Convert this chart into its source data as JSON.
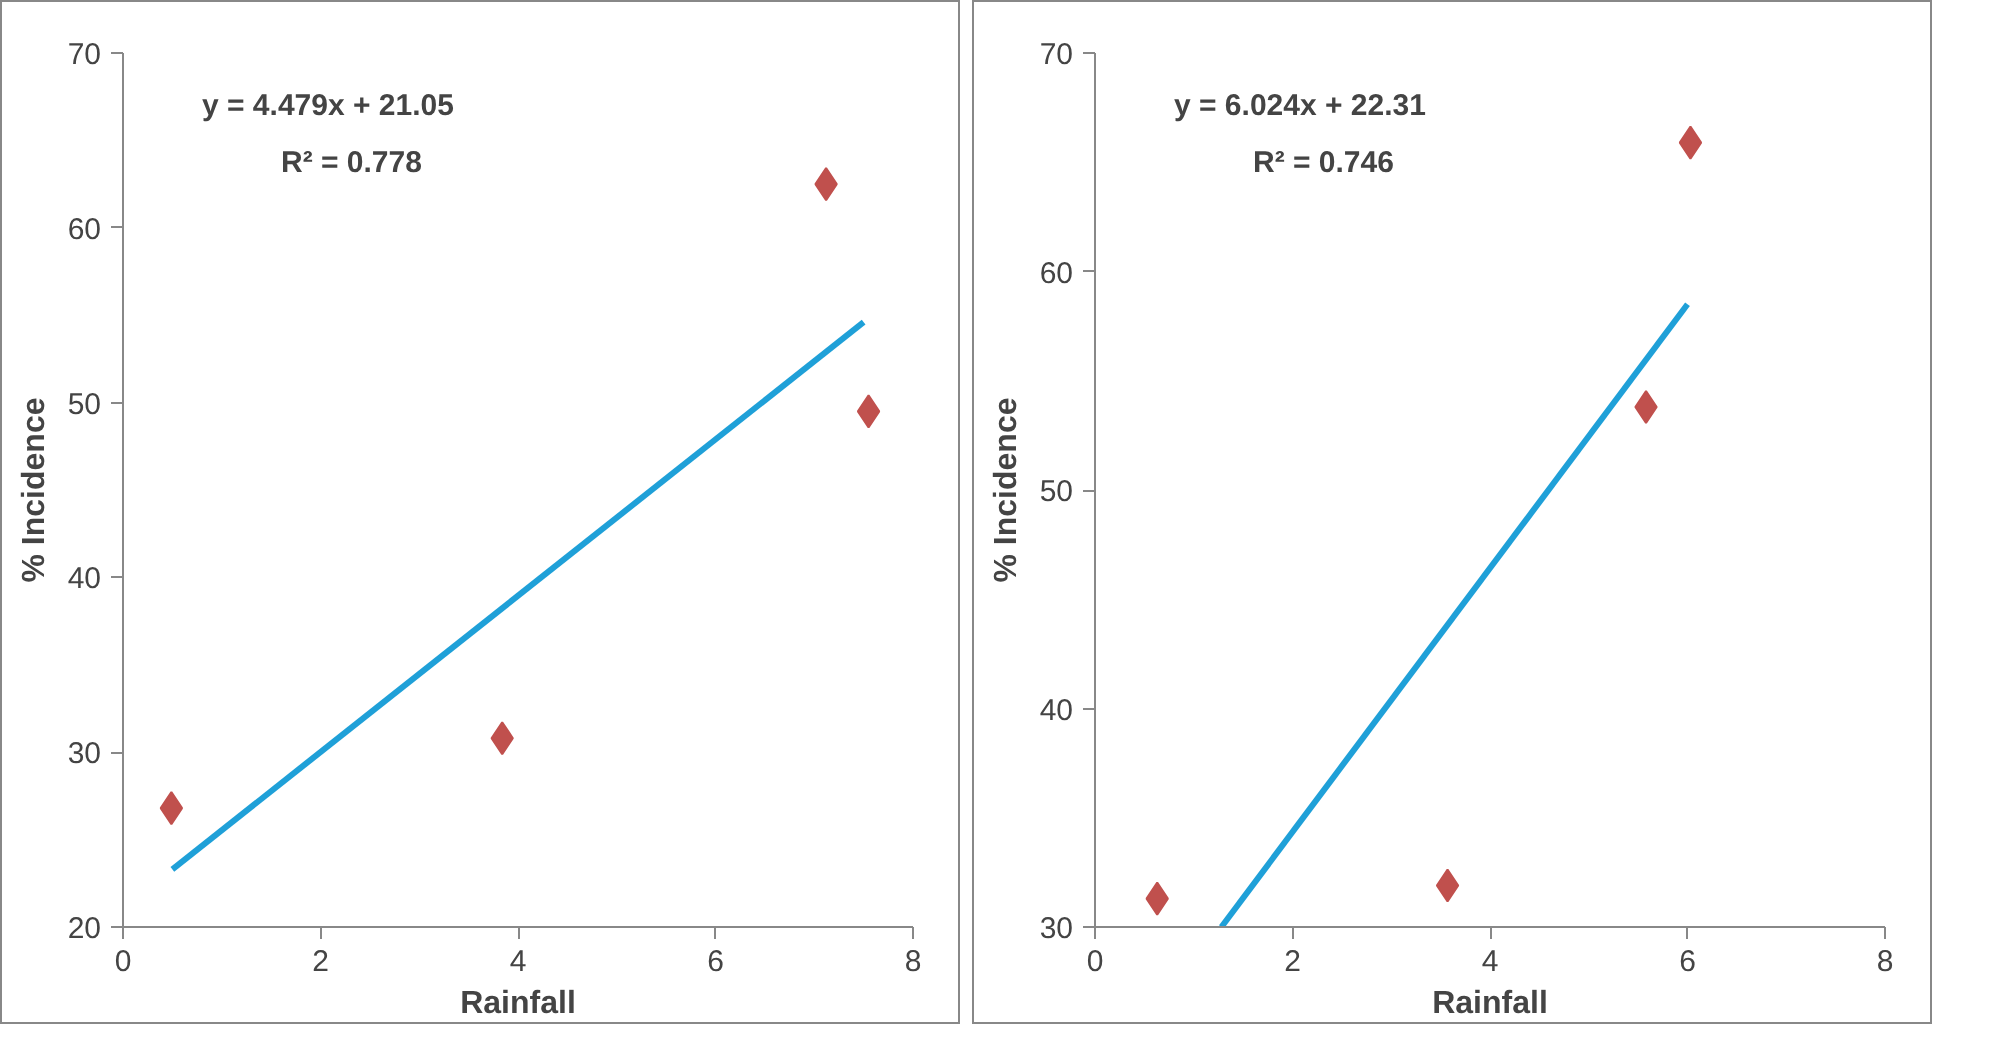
{
  "chart_data": [
    {
      "type": "scatter",
      "xlabel": "Rainfall",
      "ylabel": "% Incidence",
      "xlim": [
        0,
        8
      ],
      "ylim": [
        20,
        70
      ],
      "xticks": [
        0,
        2,
        4,
        6,
        8
      ],
      "yticks": [
        20,
        30,
        40,
        50,
        60,
        70
      ],
      "grid": false,
      "marker": "diamond",
      "annotations": [
        "y = 4.479x + 21.05",
        "R² = 0.778"
      ],
      "series": [
        {
          "color": "#c0504d",
          "x": [
            0.49,
            3.84,
            7.12,
            7.55
          ],
          "values": [
            26.8,
            30.8,
            62.5,
            49.5
          ]
        },
        {
          "type": "line",
          "marker": "none",
          "color": "#1fa0d8",
          "x": [
            0.5,
            7.5
          ],
          "values": [
            23.3,
            54.6
          ]
        }
      ]
    },
    {
      "type": "scatter",
      "xlabel": "Rainfall",
      "ylabel": "% Incidence",
      "xlim": [
        0,
        8
      ],
      "ylim": [
        30,
        70
      ],
      "xticks": [
        0,
        2,
        4,
        6,
        8
      ],
      "yticks": [
        30,
        40,
        50,
        60,
        70
      ],
      "grid": false,
      "marker": "diamond",
      "annotations": [
        "y = 6.024x + 22.31",
        "R² = 0.746"
      ],
      "series": [
        {
          "color": "#c0504d",
          "x": [
            0.63,
            3.57,
            5.58,
            6.03
          ],
          "values": [
            31.3,
            31.9,
            53.8,
            65.9
          ]
        },
        {
          "type": "line",
          "marker": "none",
          "color": "#1fa0d8",
          "x": [
            1.28,
            6.0
          ],
          "values": [
            30.0,
            58.5
          ]
        }
      ]
    }
  ]
}
